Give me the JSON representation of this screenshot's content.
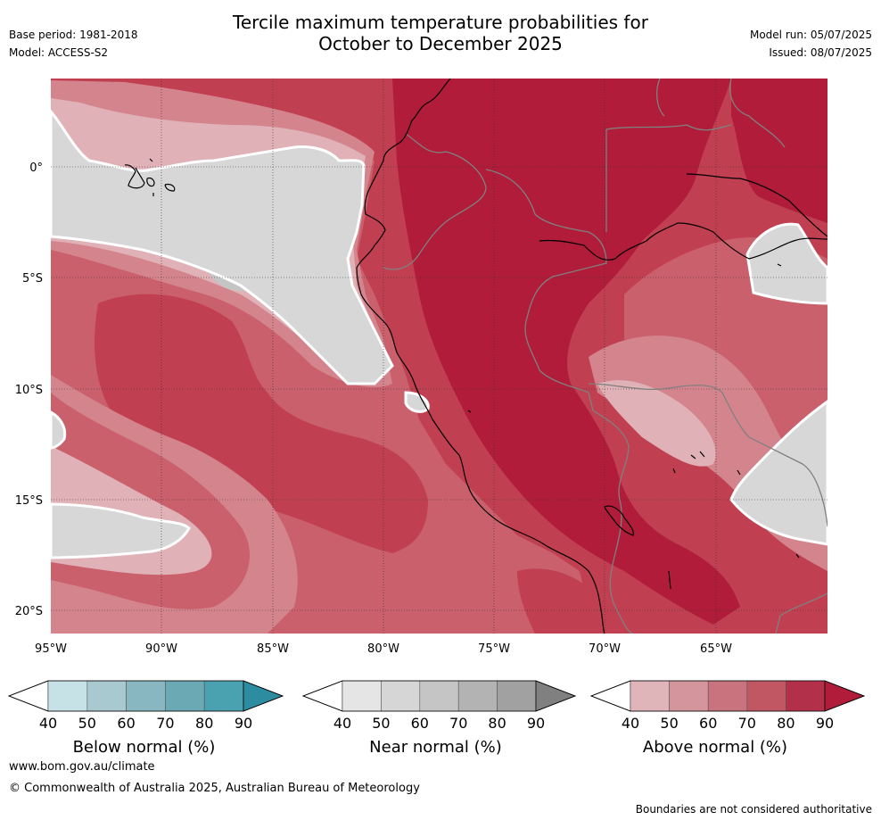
{
  "header": {
    "title_line1": "Tercile maximum temperature probabilities for",
    "title_line2": "October to December 2025",
    "base_period": "Base period: 1981-2018",
    "model": "Model: ACCESS-S2",
    "model_run": "Model run: 05/07/2025",
    "issued": "Issued: 08/07/2025"
  },
  "map": {
    "lon_labels": [
      "95°W",
      "90°W",
      "85°W",
      "80°W",
      "75°W",
      "70°W",
      "65°W"
    ],
    "lat_labels": [
      "0°",
      "5°S",
      "10°S",
      "15°S",
      "20°S"
    ],
    "colors": {
      "above_90": "#b01c3a",
      "above_80": "#c03f51",
      "above_70": "#c9606c",
      "above_60": "#d4848d",
      "above_50": "#e0b1b6",
      "near_50": "#d7d7d7",
      "near_60": "#c5c5c5",
      "near_70": "#ababab",
      "coast": "#000000",
      "border": "#808080"
    }
  },
  "colorbars": [
    {
      "name": "below",
      "title": "Below normal (%)",
      "ticks": [
        "40",
        "50",
        "60",
        "70",
        "80",
        "90"
      ],
      "colors": [
        "#ffffff",
        "#c7e2e7",
        "#a8c9cf",
        "#89b7c1",
        "#6baab5",
        "#4aa1b0",
        "#2d8ca0"
      ]
    },
    {
      "name": "near",
      "title": "Near normal (%)",
      "ticks": [
        "40",
        "50",
        "60",
        "70",
        "80",
        "90"
      ],
      "colors": [
        "#ffffff",
        "#e5e5e5",
        "#d6d6d6",
        "#c5c5c5",
        "#b3b3b3",
        "#a1a1a1",
        "#808080"
      ]
    },
    {
      "name": "above",
      "title": "Above normal (%)",
      "ticks": [
        "40",
        "50",
        "60",
        "70",
        "80",
        "90"
      ],
      "colors": [
        "#ffffff",
        "#e0b5ba",
        "#d4959c",
        "#c9737e",
        "#c05763",
        "#b3304a",
        "#b01c3a"
      ]
    }
  ],
  "footer": {
    "url": "www.bom.gov.au/climate",
    "copyright": "© Commonwealth of Australia 2025, Australian Bureau of Meteorology",
    "note": "Boundaries are not considered authoritative"
  }
}
